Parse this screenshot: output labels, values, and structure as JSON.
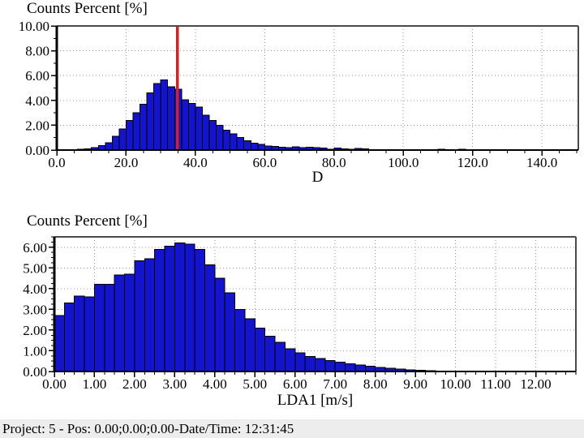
{
  "status_bar": {
    "text": "Project: 5 - Pos: 0.00;0.00;0.00-Date/Time: 12:31:45",
    "background": "#ededed"
  },
  "colors": {
    "bar_fill": "#1414cc",
    "bar_stroke": "#000000",
    "cursor": "#d42020",
    "grid": "#999999",
    "axis": "#000000",
    "border": "#4a4a4a",
    "background": "#ffffff"
  },
  "chart_data": [
    {
      "type": "bar",
      "title": "Counts Percent [%]",
      "xlabel": "D",
      "ylabel": "Counts Percent [%]",
      "xlim": [
        0,
        150.5
      ],
      "ylim": [
        0,
        10
      ],
      "x_tick_values": [
        0,
        20,
        40,
        60,
        80,
        100,
        120,
        140
      ],
      "x_tick_labels": [
        "0.0",
        "20.0",
        "40.0",
        "60.0",
        "80.0",
        "100.0",
        "120.0",
        "140.0"
      ],
      "y_tick_values": [
        0,
        2,
        4,
        6,
        8,
        10
      ],
      "y_tick_labels": [
        "0.00",
        "2.00",
        "4.00",
        "6.00",
        "8.00",
        "10.00"
      ],
      "x_minor_step": 5,
      "y_minor_step": 1,
      "grid_x": [
        20,
        40,
        60,
        80,
        100,
        120,
        140
      ],
      "grid_y": [
        2,
        4,
        6,
        8
      ],
      "grid_on": true,
      "legend": "none",
      "bin_start": 0,
      "bin_width": 2,
      "values": [
        0.02,
        0.02,
        0.03,
        0.05,
        0.1,
        0.2,
        0.35,
        0.6,
        1.1,
        1.7,
        2.4,
        3.0,
        3.7,
        4.6,
        5.35,
        5.65,
        5.1,
        4.9,
        4.05,
        3.75,
        3.45,
        2.8,
        2.4,
        2.0,
        1.6,
        1.3,
        1.0,
        0.75,
        0.57,
        0.45,
        0.33,
        0.28,
        0.22,
        0.18,
        0.25,
        0.2,
        0.22,
        0.18,
        0.15,
        0.08,
        0.15,
        0.1,
        0.06,
        0.12,
        0.1,
        0.04,
        0.03,
        0.03,
        0.02,
        0.02,
        0.02,
        0.02,
        0.02,
        0.03,
        0.04,
        0.05,
        0.03,
        0.02,
        0.05,
        0.04,
        0.02,
        0.01,
        0.01,
        0,
        0,
        0.02,
        0,
        0,
        0,
        0.01,
        0,
        0,
        0,
        0,
        0
      ],
      "cursor_x": 34.8
    },
    {
      "type": "bar",
      "title": "Counts Percent [%]",
      "xlabel": "LDA1 [m/s]",
      "ylabel": "Counts Percent [%]",
      "xlim": [
        0,
        13
      ],
      "ylim": [
        0,
        6.5
      ],
      "x_tick_values": [
        0,
        1,
        2,
        3,
        4,
        5,
        6,
        7,
        8,
        9,
        10,
        11,
        12
      ],
      "x_tick_labels": [
        "0.00",
        "1.00",
        "2.00",
        "3.00",
        "4.00",
        "5.00",
        "6.00",
        "7.00",
        "8.00",
        "9.00",
        "10.00",
        "11.00",
        "12.00"
      ],
      "y_tick_values": [
        0,
        1,
        2,
        3,
        4,
        5,
        6
      ],
      "y_tick_labels": [
        "0.00",
        "1.00",
        "2.00",
        "3.00",
        "4.00",
        "5.00",
        "6.00"
      ],
      "x_minor_step": 0.25,
      "y_minor_step": 0.25,
      "grid_x": [
        1,
        2,
        3,
        4,
        5,
        6,
        7,
        8,
        9,
        10,
        11,
        12
      ],
      "grid_y": [
        1,
        2,
        3,
        4,
        5,
        6
      ],
      "grid_on": true,
      "legend": "none",
      "bin_start": 0,
      "bin_width": 0.25,
      "values": [
        2.7,
        3.3,
        3.65,
        3.6,
        4.2,
        4.2,
        4.65,
        4.7,
        5.35,
        5.45,
        5.9,
        6.05,
        6.2,
        6.15,
        5.9,
        5.15,
        4.5,
        3.8,
        3.0,
        2.55,
        2.1,
        1.7,
        1.4,
        1.1,
        0.9,
        0.72,
        0.62,
        0.52,
        0.45,
        0.38,
        0.32,
        0.26,
        0.2,
        0.15,
        0.11,
        0.08,
        0.05,
        0.03
      ],
      "cursor_x": null
    }
  ]
}
